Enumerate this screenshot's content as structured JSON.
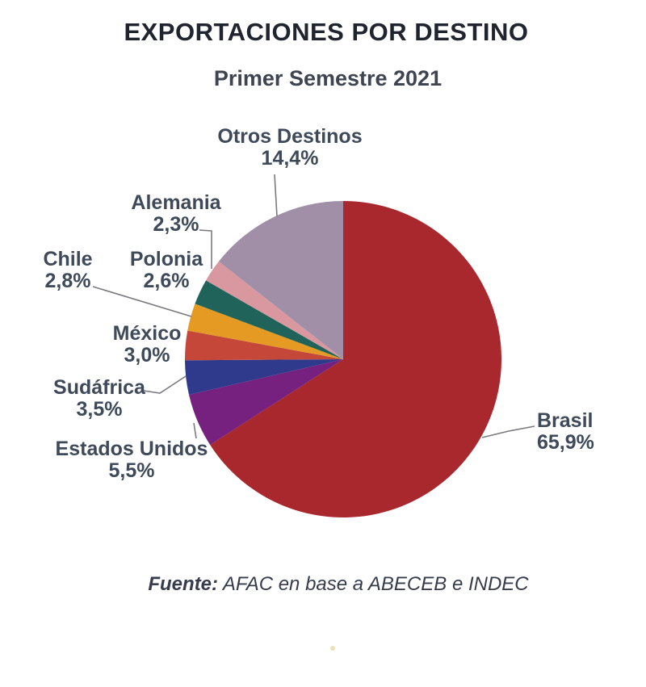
{
  "header": {
    "title": "EXPORTACIONES POR DESTINO",
    "subtitle": "Primer Semestre 2021"
  },
  "footer": {
    "source_label": "Fuente:",
    "source_text": "AFAC en base a ABECEB e INDEC"
  },
  "misc": {
    "stray_dot_color": "#E8DAA8",
    "text_color": "#3E4A5A",
    "leader_line_color": "#7A7A80"
  },
  "chart_data": {
    "type": "pie",
    "title": "EXPORTACIONES POR DESTINO",
    "subtitle": "Primer Semestre 2021",
    "source": "Fuente: AFAC en base a ABECEB e INDEC",
    "units": "%",
    "start_angle_deg": 0,
    "direction": "clockwise",
    "legend": "none (direct callout labels with leader lines)",
    "slices": [
      {
        "id": "brasil",
        "label": "Brasil",
        "value": 65.9,
        "display": "65,9%",
        "color": "#A8282E"
      },
      {
        "id": "estados_unidos",
        "label": "Estados Unidos",
        "value": 5.5,
        "display": "5,5%",
        "color": "#76217F"
      },
      {
        "id": "sudafrica",
        "label": "Sudáfrica",
        "value": 3.5,
        "display": "3,5%",
        "color": "#2F3A8D"
      },
      {
        "id": "mexico",
        "label": "México",
        "value": 3.0,
        "display": "3,0%",
        "color": "#C4473A"
      },
      {
        "id": "chile",
        "label": "Chile",
        "value": 2.8,
        "display": "2,8%",
        "color": "#E59A24"
      },
      {
        "id": "polonia",
        "label": "Polonia",
        "value": 2.6,
        "display": "2,6%",
        "color": "#20635A"
      },
      {
        "id": "alemania",
        "label": "Alemania",
        "value": 2.3,
        "display": "2,3%",
        "color": "#D9989F"
      },
      {
        "id": "otros",
        "label": "Otros Destinos",
        "value": 14.4,
        "display": "14,4%",
        "color": "#A18FA8"
      }
    ]
  }
}
